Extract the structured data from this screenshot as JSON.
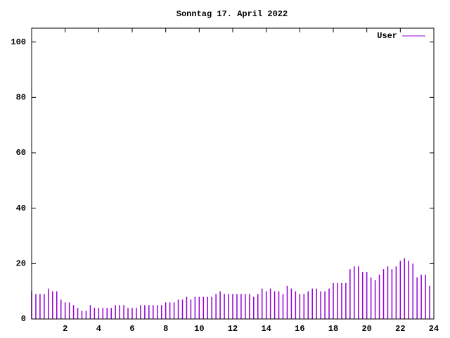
{
  "chart_data": {
    "type": "impulse",
    "title": "Sonntag 17. April 2022",
    "x": [
      0,
      0.25,
      0.5,
      0.75,
      1,
      1.25,
      1.5,
      1.75,
      2,
      2.25,
      2.5,
      2.75,
      3,
      3.25,
      3.5,
      3.75,
      4,
      4.25,
      4.5,
      4.75,
      5,
      5.25,
      5.5,
      5.75,
      6,
      6.25,
      6.5,
      6.75,
      7,
      7.25,
      7.5,
      7.75,
      8,
      8.25,
      8.5,
      8.75,
      9,
      9.25,
      9.5,
      9.75,
      10,
      10.25,
      10.5,
      10.75,
      11,
      11.25,
      11.5,
      11.75,
      12,
      12.25,
      12.5,
      12.75,
      13,
      13.25,
      13.5,
      13.75,
      14,
      14.25,
      14.5,
      14.75,
      15,
      15.25,
      15.5,
      15.75,
      16,
      16.25,
      16.5,
      16.75,
      17,
      17.25,
      17.5,
      17.75,
      18,
      18.25,
      18.5,
      18.75,
      19,
      19.25,
      19.5,
      19.75,
      20,
      20.25,
      20.5,
      20.75,
      21,
      21.25,
      21.5,
      21.75,
      22,
      22.25,
      22.5,
      22.75,
      23,
      23.25,
      23.5,
      23.75
    ],
    "series": [
      {
        "name": "User",
        "color": "#9400d3",
        "values": [
          10,
          9,
          9,
          9,
          11,
          10,
          10,
          7,
          6,
          6,
          5,
          4,
          3,
          3,
          5,
          4,
          4,
          4,
          4,
          4,
          5,
          5,
          5,
          4,
          4,
          4,
          5,
          5,
          5,
          5,
          5,
          5,
          6,
          6,
          6,
          7,
          7,
          8,
          7,
          8,
          8,
          8,
          8,
          8,
          9,
          10,
          9,
          9,
          9,
          9,
          9,
          9,
          9,
          8,
          9,
          11,
          10,
          11,
          10,
          10,
          9,
          12,
          11,
          10,
          9,
          9,
          10,
          11,
          11,
          10,
          10,
          11,
          13,
          13,
          13,
          13,
          18,
          19,
          19,
          17,
          17,
          15,
          14,
          16,
          18,
          19,
          18,
          19,
          21,
          22,
          21,
          20,
          15,
          16,
          16,
          12
        ]
      }
    ],
    "xlim": [
      0,
      24
    ],
    "ylim": [
      0,
      105
    ],
    "xticks": [
      2,
      4,
      6,
      8,
      10,
      12,
      14,
      16,
      18,
      20,
      22,
      24
    ],
    "yticks": [
      0,
      20,
      40,
      60,
      80,
      100
    ],
    "legend": "top-right"
  }
}
